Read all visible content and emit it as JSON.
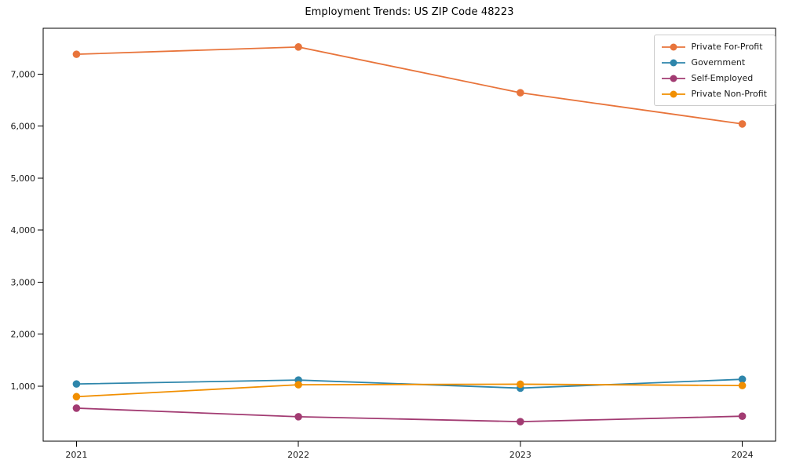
{
  "chart_data": {
    "type": "line",
    "title": "Employment Trends: US ZIP Code 48223",
    "x": [
      2021,
      2022,
      2023,
      2024
    ],
    "xtick_labels": [
      "2021",
      "2022",
      "2023",
      "2024"
    ],
    "yticks": [
      1000,
      2000,
      3000,
      4000,
      5000,
      6000,
      7000
    ],
    "ytick_labels": [
      "1,000",
      "2,000",
      "3,000",
      "4,000",
      "5,000",
      "6,000",
      "7,000"
    ],
    "xlim": [
      2020.85,
      2024.15
    ],
    "ylim": [
      -60,
      7880
    ],
    "grid": false,
    "legend_position": "upper-right",
    "axis_color": "#000000",
    "text_color": "#1a1a1a",
    "series": [
      {
        "name": "Private For-Profit",
        "color": "#E8743B",
        "values": [
          7380,
          7520,
          6640,
          6040
        ]
      },
      {
        "name": "Government",
        "color": "#2E86AB",
        "values": [
          1040,
          1115,
          960,
          1130
        ]
      },
      {
        "name": "Self-Employed",
        "color": "#A23B72",
        "values": [
          575,
          410,
          315,
          420
        ]
      },
      {
        "name": "Private Non-Profit",
        "color": "#F18F01",
        "values": [
          795,
          1025,
          1035,
          1010
        ]
      }
    ]
  }
}
